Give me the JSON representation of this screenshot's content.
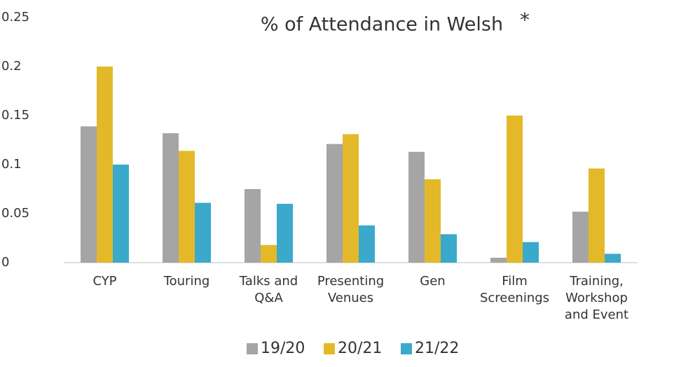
{
  "chart_data": {
    "type": "bar",
    "title": "% of Attendance in Welsh",
    "annotations": [
      "*"
    ],
    "categories": [
      "CYP",
      "Touring",
      "Talks and Q&A",
      "Presenting Venues",
      "Gen",
      "Film Screenings",
      "Training, Workshop and Event"
    ],
    "series": [
      {
        "name": "19/20",
        "color": "#a5a5a5",
        "values": [
          0.139,
          0.132,
          0.075,
          0.121,
          0.113,
          0.005,
          0.052
        ]
      },
      {
        "name": "20/21",
        "color": "#e3b92a",
        "values": [
          0.2,
          0.114,
          0.018,
          0.131,
          0.085,
          0.15,
          0.096
        ]
      },
      {
        "name": "21/22",
        "color": "#3aa9cb",
        "values": [
          0.1,
          0.061,
          0.06,
          0.038,
          0.029,
          0.021,
          0.009
        ]
      }
    ],
    "ylim": [
      0,
      0.25
    ],
    "yticks": [
      0,
      0.05,
      0.1,
      0.15,
      0.2,
      0.25
    ],
    "grid": false,
    "legend": "bottom"
  }
}
